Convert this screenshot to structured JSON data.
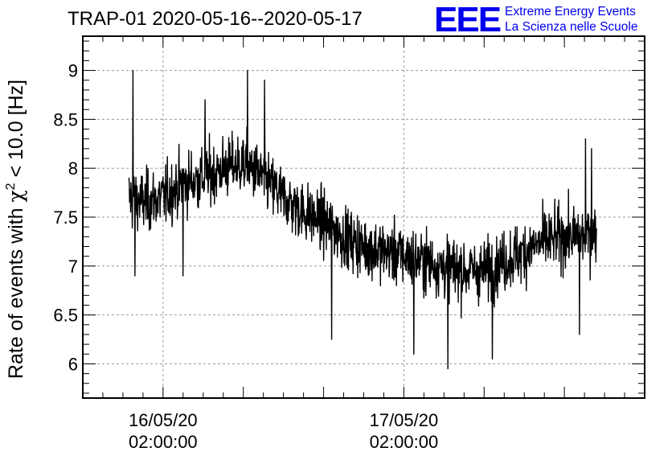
{
  "logo": {
    "mark": "EEE",
    "line1": "Extreme Energy Events",
    "line2": "La Scienza nelle Scuole",
    "color": "#0000ee"
  },
  "chart_data": {
    "type": "line",
    "title": "TRAP-01 2020-05-16--2020-05-17",
    "ylabel_prefix": "Rate of events with ",
    "ylabel_symbol": "χ",
    "ylabel_sup": "2",
    "ylabel_suffix": " < 10.0 [Hz]",
    "xlabel": "",
    "ylim": [
      5.65,
      9.35
    ],
    "yticks": [
      6,
      6.5,
      7,
      7.5,
      8,
      8.5,
      9
    ],
    "ytick_labels": [
      "6",
      "6.5",
      "7",
      "7.5",
      "8",
      "8.5",
      "9"
    ],
    "x_unit": "hours since 2020-05-15 18:00",
    "xlim": [
      0,
      56
    ],
    "xticks": [
      {
        "x": 8,
        "line1": "16/05/20",
        "line2": "02:00:00"
      },
      {
        "x": 32,
        "line1": "17/05/20",
        "line2": "02:00:00"
      }
    ],
    "grid": true,
    "line_color": "#000000",
    "series": [
      {
        "name": "TRAP-01",
        "x_start": 4.6,
        "x_end": 51.2,
        "trend": [
          [
            4.6,
            7.7
          ],
          [
            6,
            7.65
          ],
          [
            8,
            7.7
          ],
          [
            10,
            7.85
          ],
          [
            12,
            7.9
          ],
          [
            14,
            8.0
          ],
          [
            16,
            8.05
          ],
          [
            18,
            7.9
          ],
          [
            20,
            7.7
          ],
          [
            22,
            7.55
          ],
          [
            24,
            7.45
          ],
          [
            26,
            7.3
          ],
          [
            28,
            7.2
          ],
          [
            30,
            7.15
          ],
          [
            32,
            7.1
          ],
          [
            34,
            7.05
          ],
          [
            36,
            7.0
          ],
          [
            38,
            6.95
          ],
          [
            40,
            6.95
          ],
          [
            42,
            7.05
          ],
          [
            44,
            7.15
          ],
          [
            46,
            7.25
          ],
          [
            48,
            7.3
          ],
          [
            50,
            7.3
          ],
          [
            51.2,
            7.35
          ]
        ],
        "noise_sigma": 0.28,
        "extremes": [
          {
            "x": 5.0,
            "y": 9.0
          },
          {
            "x": 16.4,
            "y": 9.0
          },
          {
            "x": 18.1,
            "y": 8.9
          },
          {
            "x": 12.2,
            "y": 8.7
          },
          {
            "x": 36.4,
            "y": 5.95
          },
          {
            "x": 5.2,
            "y": 6.9
          },
          {
            "x": 10.0,
            "y": 6.9
          },
          {
            "x": 24.8,
            "y": 6.25
          },
          {
            "x": 33.0,
            "y": 6.1
          },
          {
            "x": 40.8,
            "y": 6.05
          },
          {
            "x": 50.1,
            "y": 8.3
          },
          {
            "x": 50.7,
            "y": 8.2
          },
          {
            "x": 49.5,
            "y": 6.3
          }
        ]
      }
    ]
  }
}
